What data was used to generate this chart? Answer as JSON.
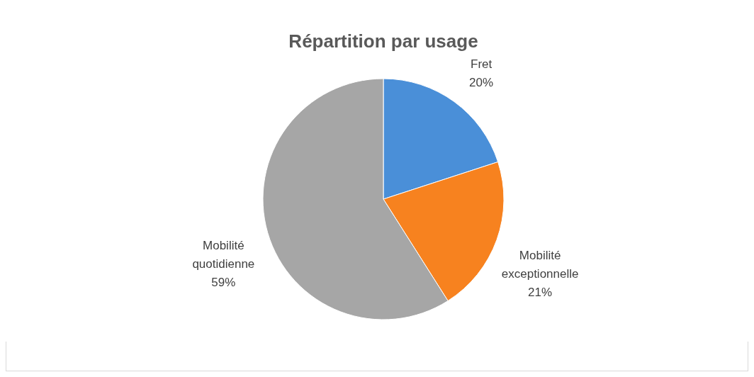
{
  "chart_data": {
    "type": "pie",
    "title": "Répartition par usage",
    "categories": [
      "Fret",
      "Mobilité exceptionnelle",
      "Mobilité quotidienne"
    ],
    "values": [
      20,
      21,
      59
    ],
    "colors": [
      "#4a8fd8",
      "#f7821f",
      "#a6a6a6"
    ],
    "value_labels": [
      "20%",
      "21%",
      "59%"
    ],
    "legend": false
  }
}
